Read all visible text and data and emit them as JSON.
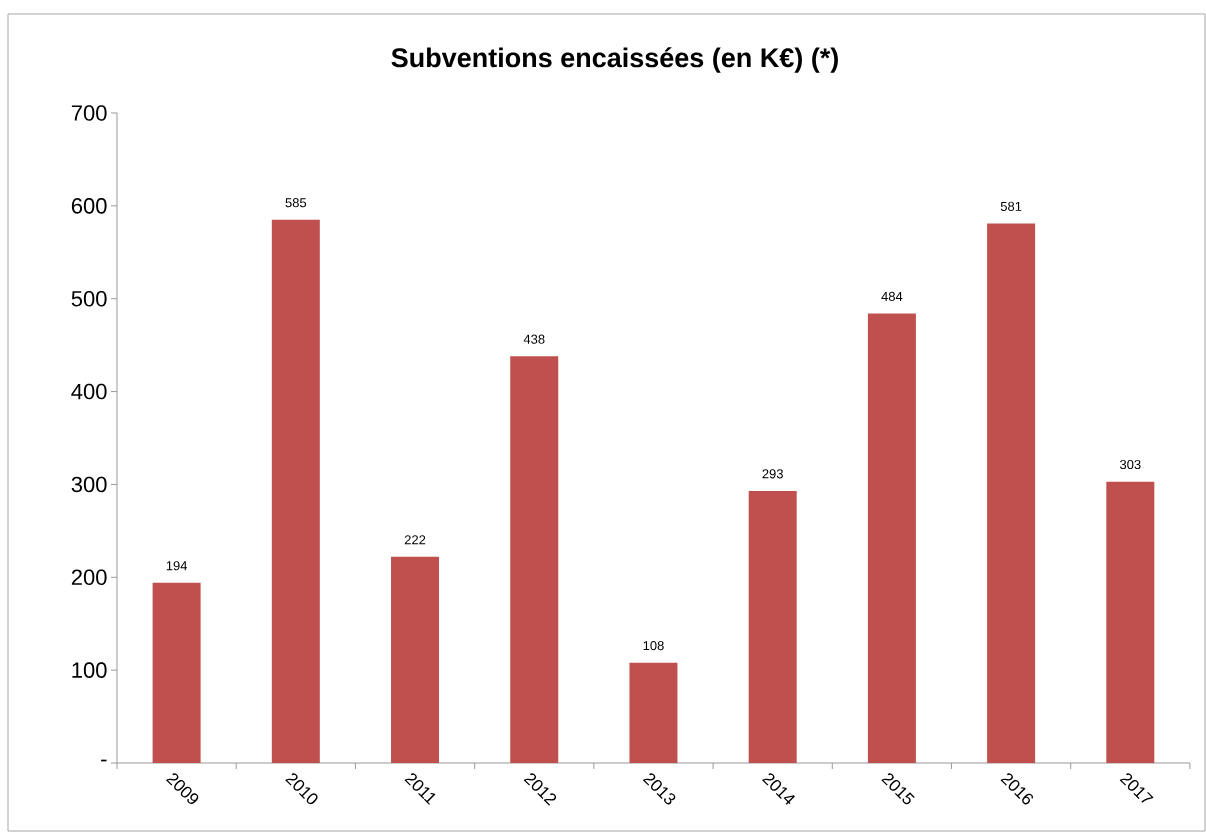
{
  "chart_data": {
    "type": "bar",
    "title": "Subventions encaissées (en K€) (*)",
    "categories": [
      "2009",
      "2010",
      "2011",
      "2012",
      "2013",
      "2014",
      "2015",
      "2016",
      "2017"
    ],
    "values": [
      194,
      585,
      222,
      438,
      108,
      293,
      484,
      581,
      303
    ],
    "color": "#c0504d",
    "ylim": [
      0,
      700
    ],
    "yticks": [
      {
        "value": 0,
        "label": "-"
      },
      100,
      200,
      300,
      400,
      500,
      600,
      700
    ],
    "data_labels": true,
    "grid": false
  }
}
